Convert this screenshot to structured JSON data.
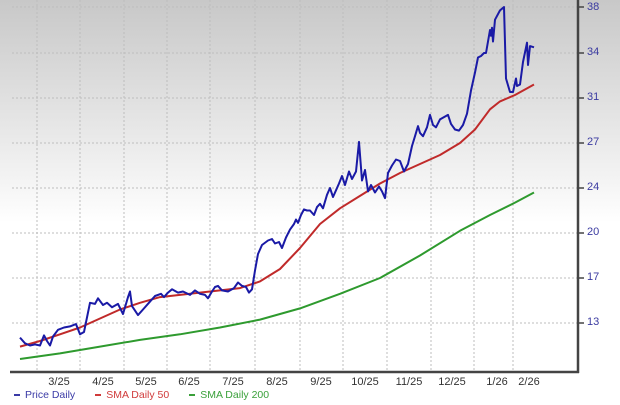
{
  "chart_data": {
    "type": "line",
    "title": "",
    "xlabel": "",
    "ylabel": "",
    "x_ticks": [
      "3/25",
      "4/25",
      "5/25",
      "6/25",
      "7/25",
      "8/25",
      "9/25",
      "10/25",
      "11/25",
      "12/25",
      "1/26",
      "2/26"
    ],
    "y_ticks": [
      13,
      17,
      20,
      24,
      27,
      31,
      34,
      38
    ],
    "ylim": [
      9.5,
      38.5
    ],
    "grid": true,
    "legend_position": "bottom-left",
    "series": [
      {
        "name": "Price Daily",
        "color": "#1a1aa6",
        "points": [
          [
            20,
            11.7
          ],
          [
            25,
            11.2
          ],
          [
            30,
            11.0
          ],
          [
            35,
            11.1
          ],
          [
            40,
            11.0
          ],
          [
            44,
            11.9
          ],
          [
            47,
            11.4
          ],
          [
            50,
            11.0
          ],
          [
            53,
            11.8
          ],
          [
            58,
            12.4
          ],
          [
            64,
            12.6
          ],
          [
            70,
            12.7
          ],
          [
            76,
            12.9
          ],
          [
            80,
            12.0
          ],
          [
            84,
            12.2
          ],
          [
            90,
            14.8
          ],
          [
            95,
            14.7
          ],
          [
            98,
            15.2
          ],
          [
            103,
            14.6
          ],
          [
            107,
            14.8
          ],
          [
            112,
            14.4
          ],
          [
            118,
            14.7
          ],
          [
            123,
            13.8
          ],
          [
            128,
            15.3
          ],
          [
            130,
            15.8
          ],
          [
            132,
            14.5
          ],
          [
            138,
            13.7
          ],
          [
            143,
            14.2
          ],
          [
            150,
            14.9
          ],
          [
            155,
            15.4
          ],
          [
            161,
            15.6
          ],
          [
            164,
            15.3
          ],
          [
            168,
            15.7
          ],
          [
            172,
            16.0
          ],
          [
            178,
            15.7
          ],
          [
            183,
            15.8
          ],
          [
            190,
            15.5
          ],
          [
            195,
            15.9
          ],
          [
            200,
            15.6
          ],
          [
            205,
            15.5
          ],
          [
            208,
            15.2
          ],
          [
            212,
            15.8
          ],
          [
            215,
            16.2
          ],
          [
            218,
            16.3
          ],
          [
            222,
            15.9
          ],
          [
            228,
            15.8
          ],
          [
            234,
            16.1
          ],
          [
            238,
            16.6
          ],
          [
            242,
            16.3
          ],
          [
            246,
            16.2
          ],
          [
            249,
            15.7
          ],
          [
            252,
            16.0
          ],
          [
            255,
            17.5
          ],
          [
            258,
            18.6
          ],
          [
            262,
            19.2
          ],
          [
            268,
            19.5
          ],
          [
            272,
            19.6
          ],
          [
            275,
            19.3
          ],
          [
            279,
            19.4
          ],
          [
            282,
            19.0
          ],
          [
            286,
            19.7
          ],
          [
            290,
            20.3
          ],
          [
            294,
            20.8
          ],
          [
            296,
            21.2
          ],
          [
            298,
            20.9
          ],
          [
            301,
            21.6
          ],
          [
            304,
            22.1
          ],
          [
            307,
            22.0
          ],
          [
            310,
            22.0
          ],
          [
            314,
            21.6
          ],
          [
            317,
            22.3
          ],
          [
            320,
            22.6
          ],
          [
            323,
            22.2
          ],
          [
            327,
            23.4
          ],
          [
            330,
            24.0
          ],
          [
            333,
            23.2
          ],
          [
            336,
            23.8
          ],
          [
            339,
            24.3
          ],
          [
            342,
            24.8
          ],
          [
            345,
            24.2
          ],
          [
            349,
            25.1
          ],
          [
            352,
            24.6
          ],
          [
            356,
            25.1
          ],
          [
            359,
            27.1
          ],
          [
            362,
            24.5
          ],
          [
            365,
            25.2
          ],
          [
            368,
            23.7
          ],
          [
            371,
            24.2
          ],
          [
            375,
            23.6
          ],
          [
            379,
            24.1
          ],
          [
            382,
            23.7
          ],
          [
            385,
            23.1
          ],
          [
            388,
            25.0
          ],
          [
            392,
            25.5
          ],
          [
            396,
            25.9
          ],
          [
            400,
            25.8
          ],
          [
            404,
            25.1
          ],
          [
            408,
            25.6
          ],
          [
            412,
            26.8
          ],
          [
            415,
            27.6
          ],
          [
            418,
            28.5
          ],
          [
            420,
            27.9
          ],
          [
            423,
            27.6
          ],
          [
            427,
            28.4
          ],
          [
            430,
            29.5
          ],
          [
            433,
            28.6
          ],
          [
            436,
            28.4
          ],
          [
            440,
            29.1
          ],
          [
            444,
            29.3
          ],
          [
            448,
            29.5
          ],
          [
            451,
            28.7
          ],
          [
            455,
            28.2
          ],
          [
            459,
            28.1
          ],
          [
            463,
            28.6
          ],
          [
            467,
            29.6
          ],
          [
            471,
            31.5
          ],
          [
            475,
            32.7
          ],
          [
            478,
            33.7
          ],
          [
            481,
            33.8
          ],
          [
            484,
            34.0
          ],
          [
            486,
            34.0
          ],
          [
            490,
            36.0
          ],
          [
            491,
            35.5
          ],
          [
            492,
            36.2
          ],
          [
            493,
            35.0
          ],
          [
            495,
            36.9
          ],
          [
            500,
            37.7
          ],
          [
            504,
            38.0
          ],
          [
            506,
            32.3
          ],
          [
            510,
            31.4
          ],
          [
            513,
            31.4
          ],
          [
            516,
            32.3
          ],
          [
            517,
            31.8
          ],
          [
            520,
            31.9
          ],
          [
            523,
            33.4
          ],
          [
            527,
            34.9
          ],
          [
            528,
            33.2
          ],
          [
            530,
            34.6
          ],
          [
            534,
            34.5
          ]
        ]
      },
      {
        "name": "SMA Daily 50",
        "color": "#c02a2a",
        "points": [
          [
            20,
            10.9
          ],
          [
            40,
            11.4
          ],
          [
            60,
            12.0
          ],
          [
            80,
            12.6
          ],
          [
            100,
            13.4
          ],
          [
            120,
            14.2
          ],
          [
            140,
            14.8
          ],
          [
            160,
            15.3
          ],
          [
            180,
            15.5
          ],
          [
            200,
            15.7
          ],
          [
            220,
            15.9
          ],
          [
            240,
            16.1
          ],
          [
            260,
            16.7
          ],
          [
            280,
            17.6
          ],
          [
            300,
            19.0
          ],
          [
            320,
            20.8
          ],
          [
            340,
            22.2
          ],
          [
            360,
            23.3
          ],
          [
            380,
            24.3
          ],
          [
            400,
            25.0
          ],
          [
            420,
            25.6
          ],
          [
            440,
            26.2
          ],
          [
            460,
            27.0
          ],
          [
            475,
            28.2
          ],
          [
            490,
            30.0
          ],
          [
            500,
            30.7
          ],
          [
            515,
            31.2
          ],
          [
            534,
            31.9
          ]
        ]
      },
      {
        "name": "SMA Daily 200",
        "color": "#2e9a2e",
        "points": [
          [
            20,
            9.8
          ],
          [
            60,
            10.3
          ],
          [
            100,
            10.9
          ],
          [
            140,
            11.5
          ],
          [
            180,
            12.0
          ],
          [
            220,
            12.6
          ],
          [
            260,
            13.3
          ],
          [
            300,
            14.3
          ],
          [
            340,
            15.6
          ],
          [
            380,
            17.0
          ],
          [
            420,
            18.5
          ],
          [
            460,
            20.2
          ],
          [
            490,
            21.6
          ],
          [
            515,
            22.7
          ],
          [
            534,
            23.6
          ]
        ]
      }
    ]
  },
  "legend": {
    "items": [
      {
        "label": "Price Daily",
        "color": "#3a3aa6"
      },
      {
        "label": "SMA Daily 50",
        "color": "#d03a3a"
      },
      {
        "label": "SMA Daily 200",
        "color": "#3aa03a"
      }
    ]
  },
  "y_labels": [
    "38",
    "34",
    "31",
    "27",
    "24",
    "20",
    "17",
    "13"
  ],
  "x_labels": [
    "3/25",
    "4/25",
    "5/25",
    "6/25",
    "7/25",
    "8/25",
    "9/25",
    "10/25",
    "11/25",
    "12/25",
    "1/26",
    "2/26"
  ]
}
